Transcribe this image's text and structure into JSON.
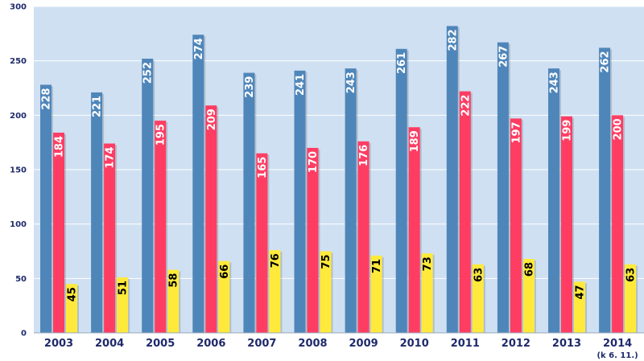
{
  "chart_data": {
    "type": "bar",
    "title": "",
    "xlabel": "",
    "ylabel": "",
    "ylim": [
      0,
      300
    ],
    "yticks": [
      0,
      50,
      100,
      150,
      200,
      250,
      300
    ],
    "grid": true,
    "categories": [
      "2003",
      "2004",
      "2005",
      "2006",
      "2007",
      "2008",
      "2009",
      "2010",
      "2011",
      "2012",
      "2013",
      "2014"
    ],
    "category_note": {
      "2014": "(k 6. 11.)"
    },
    "series": [
      {
        "name": "series-1",
        "color": "#4f86ba",
        "label_color": "#ffffff",
        "values": [
          228,
          221,
          252,
          274,
          239,
          241,
          243,
          261,
          282,
          267,
          243,
          262
        ]
      },
      {
        "name": "series-2",
        "color": "#ff3d63",
        "label_color": "#ffffff",
        "values": [
          184,
          174,
          195,
          209,
          165,
          170,
          176,
          189,
          222,
          197,
          199,
          200
        ]
      },
      {
        "name": "series-3",
        "color": "#ffea3b",
        "label_color": "#000000",
        "values": [
          45,
          51,
          58,
          66,
          76,
          75,
          71,
          73,
          63,
          68,
          47,
          63
        ]
      }
    ],
    "plot_background": "#cfe0f2"
  }
}
